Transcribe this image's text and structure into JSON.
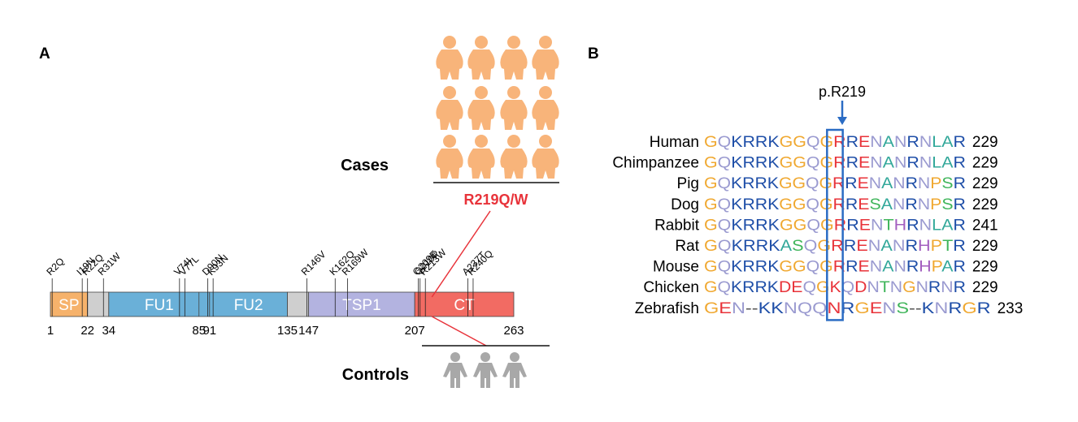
{
  "panels": {
    "a": "A",
    "b": "B"
  },
  "cases_label": "Cases",
  "controls_label": "Controls",
  "case_variant": "R219Q/W",
  "case_count": 12,
  "control_count": 3,
  "domains": [
    {
      "label": "SP",
      "start": 1,
      "end": 22,
      "color": "#f6b26b"
    },
    {
      "label": "",
      "start": 22,
      "end": 34,
      "color": "#cfcfcf"
    },
    {
      "label": "FU1",
      "start": 34,
      "end": 91,
      "color": "#6ab0d8"
    },
    {
      "label": "FU2",
      "start": 91,
      "end": 135,
      "color": "#6ab0d8"
    },
    {
      "label": "",
      "start": 135,
      "end": 147,
      "color": "#cfcfcf"
    },
    {
      "label": "TSP1",
      "start": 147,
      "end": 207,
      "color": "#b3b3e0"
    },
    {
      "label": "CT",
      "start": 207,
      "end": 263,
      "color": "#f26b63"
    }
  ],
  "domain_lines": [
    85
  ],
  "positions": [
    "1",
    "22",
    "34",
    "85",
    "91",
    "135",
    "147",
    "207",
    "263"
  ],
  "mutations": [
    {
      "label": "R2Q",
      "pos": 2
    },
    {
      "label": "I19N",
      "pos": 19
    },
    {
      "label": "R22Q",
      "pos": 22
    },
    {
      "label": "R31W",
      "pos": 31
    },
    {
      "label": "V74I",
      "pos": 74
    },
    {
      "label": "V77L",
      "pos": 77
    },
    {
      "label": "D90N",
      "pos": 90
    },
    {
      "label": "K93N",
      "pos": 93
    },
    {
      "label": "R146V",
      "pos": 146
    },
    {
      "label": "K162Q",
      "pos": 162
    },
    {
      "label": "R169W",
      "pos": 169
    },
    {
      "label": "G209E",
      "pos": 209
    },
    {
      "label": "Q210P",
      "pos": 210
    },
    {
      "label": "R213W",
      "pos": 213
    },
    {
      "label": "A237T",
      "pos": 237
    },
    {
      "label": "R240Q",
      "pos": 240
    }
  ],
  "annotation": "p.R219",
  "alignment": [
    {
      "species": "Human",
      "seq": "GQKRRKGGQGRRENANRNLAR",
      "end": "229"
    },
    {
      "species": "Chimpanzee",
      "seq": "GQKRRKGGQGRRENANRNLAR",
      "end": "229"
    },
    {
      "species": "Pig",
      "seq": "GQKRRKGGQGRRENANRNPSR",
      "end": "229"
    },
    {
      "species": "Dog",
      "seq": "GQKRRKGGQGRRESANRNPSR",
      "end": "229"
    },
    {
      "species": "Rabbit",
      "seq": "GQKRRKGGQGRRENTHRNLAR",
      "end": "241"
    },
    {
      "species": "Rat",
      "seq": "GQKRRKASQGRRENANRHPTR",
      "end": "229"
    },
    {
      "species": "Mouse",
      "seq": "GQKRRKGGQGRRENANRHPAR",
      "end": "229"
    },
    {
      "species": "Chicken",
      "seq": "GQKRRKDEQGKQDNTNGNRNR",
      "end": "229"
    },
    {
      "species": "Zebrafish",
      "seq": "GEN--KKNQQNRGENS--KNRGR",
      "end": "233"
    }
  ],
  "aa_colors": {
    "G": "#f0a830",
    "Q": "#9a9ad0",
    "N": "#9a9ad0",
    "K": "#1f4fa8",
    "R": "#1f4fa8",
    "H": "#a35fbf",
    "E": "#e8333a",
    "D": "#e8333a",
    "S": "#3fb55a",
    "T": "#3fb55a",
    "A": "#32a89a",
    "L": "#32a89a",
    "P": "#f0a830",
    "-": "#555555",
    "highlight": "#e8333a",
    "box": "#2b6cc4"
  }
}
